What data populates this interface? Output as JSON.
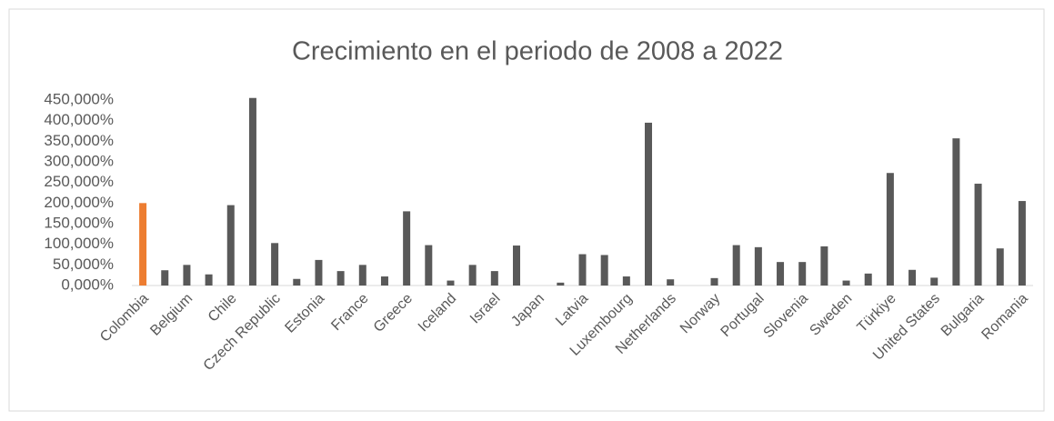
{
  "chart_data": {
    "type": "bar",
    "title": "Crecimiento en el periodo de 2008 a 2022",
    "categories": [
      "Colombia",
      null,
      "Belgium",
      null,
      "Chile",
      null,
      "Czech Republic",
      null,
      "Estonia",
      null,
      "France",
      null,
      "Greece",
      null,
      "Iceland",
      null,
      "Israel",
      null,
      "Japan",
      null,
      "Latvia",
      null,
      "Luxembourg",
      null,
      "Netherlands",
      null,
      "Norway",
      null,
      "Portugal",
      null,
      "Slovenia",
      null,
      "Sweden",
      null,
      "Türkiye",
      null,
      "United States",
      null,
      "Bulgaria",
      null,
      "Romania"
    ],
    "values": [
      200000,
      37000,
      50000,
      27000,
      195000,
      455000,
      103000,
      16000,
      62000,
      35000,
      50000,
      22000,
      180000,
      98000,
      12000,
      50000,
      35000,
      97000,
      0,
      7000,
      76000,
      74000,
      22000,
      395000,
      15000,
      0,
      18000,
      98000,
      93000,
      57000,
      57000,
      95000,
      12000,
      29000,
      273000,
      38000,
      19000,
      357000,
      247000,
      90000,
      205000
    ],
    "colors": [
      "#ed7d31",
      "#595959",
      "#595959",
      "#595959",
      "#595959",
      "#595959",
      "#595959",
      "#595959",
      "#595959",
      "#595959",
      "#595959",
      "#595959",
      "#595959",
      "#595959",
      "#595959",
      "#595959",
      "#595959",
      "#595959",
      "#595959",
      "#595959",
      "#595959",
      "#595959",
      "#595959",
      "#595959",
      "#595959",
      "#595959",
      "#595959",
      "#595959",
      "#595959",
      "#595959",
      "#595959",
      "#595959",
      "#595959",
      "#595959",
      "#595959",
      "#595959",
      "#595959",
      "#595959",
      "#595959",
      "#595959",
      "#595959"
    ],
    "ylim": [
      0,
      450000
    ],
    "yticks": [
      {
        "value": 0,
        "label": "0,000%"
      },
      {
        "value": 50000,
        "label": "50,000%"
      },
      {
        "value": 100000,
        "label": "100,000%"
      },
      {
        "value": 150000,
        "label": "150,000%"
      },
      {
        "value": 200000,
        "label": "200,000%"
      },
      {
        "value": 250000,
        "label": "250,000%"
      },
      {
        "value": 300000,
        "label": "300,000%"
      },
      {
        "value": 350000,
        "label": "350,000%"
      },
      {
        "value": 400000,
        "label": "400,000%"
      },
      {
        "value": 450000,
        "label": "450,000%"
      }
    ],
    "grid": false
  }
}
